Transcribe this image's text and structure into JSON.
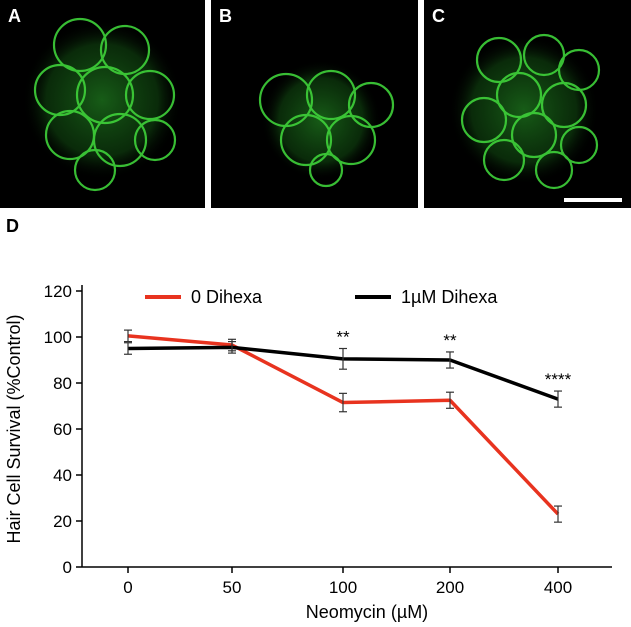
{
  "panels": {
    "a_label": "A",
    "b_label": "B",
    "c_label": "C",
    "d_label": "D"
  },
  "colors": {
    "fluorescence": "#3fd23a",
    "series_0": "#e8331f",
    "series_1": "#000000"
  },
  "chart_data": {
    "type": "line",
    "title": "",
    "xlabel": "Neomycin (µM)",
    "ylabel": "Hair Cell Survival (%Control)",
    "categories": [
      "0",
      "50",
      "100",
      "200",
      "400"
    ],
    "ylim": [
      0,
      120
    ],
    "yticks": [
      0,
      20,
      40,
      60,
      80,
      100,
      120
    ],
    "series": [
      {
        "name": "0 Dihexa",
        "color": "#e8331f",
        "values": [
          100.5,
          96.5,
          71.5,
          72.5,
          23
        ],
        "errors": [
          2.5,
          2.5,
          4,
          3.5,
          3.5
        ]
      },
      {
        "name": "1µM Dihexa",
        "color": "#000000",
        "values": [
          95,
          95.5,
          90.5,
          90,
          73
        ],
        "errors": [
          2.5,
          2.5,
          4.5,
          3.5,
          3.5
        ]
      }
    ],
    "annotations": [
      "",
      "",
      "**",
      "**",
      "****"
    ]
  }
}
